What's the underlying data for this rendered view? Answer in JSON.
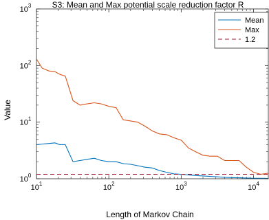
{
  "chart_data": {
    "type": "line",
    "title": "S3: Mean and Max potential scale reduction factor R",
    "xlabel": "Length of Markov Chain",
    "ylabel": "Value",
    "xscale": "log",
    "yscale": "log",
    "xlim": [
      10,
      16000
    ],
    "ylim": [
      1,
      1000
    ],
    "x_ticks": [
      {
        "base": "10",
        "exp": "1"
      },
      {
        "base": "10",
        "exp": "2"
      },
      {
        "base": "10",
        "exp": "3"
      },
      {
        "base": "10",
        "exp": "4"
      }
    ],
    "y_ticks": [
      {
        "base": "10",
        "exp": "0"
      },
      {
        "base": "10",
        "exp": "1"
      },
      {
        "base": "10",
        "exp": "2"
      },
      {
        "base": "10",
        "exp": "3"
      }
    ],
    "legend_position": "top-right",
    "series": [
      {
        "name": "Mean",
        "color": "#0072bd",
        "style": "solid",
        "x": [
          10,
          12,
          15,
          18,
          21,
          25,
          32,
          40,
          50,
          63,
          79,
          100,
          126,
          158,
          200,
          251,
          316,
          398,
          500,
          631,
          794,
          1000,
          1259,
          1585,
          1995,
          2512,
          3162,
          3981,
          5012,
          6310,
          7943,
          10000,
          12589,
          15849
        ],
        "values": [
          4.0,
          4.1,
          4.2,
          4.3,
          4.0,
          4.0,
          2.0,
          2.1,
          2.2,
          2.3,
          2.1,
          2.0,
          2.0,
          1.85,
          1.8,
          1.7,
          1.6,
          1.55,
          1.4,
          1.3,
          1.22,
          1.2,
          1.17,
          1.14,
          1.12,
          1.1,
          1.08,
          1.06,
          1.05,
          1.04,
          1.03,
          1.02,
          1.02,
          1.01
        ]
      },
      {
        "name": "Max",
        "color": "#d95319",
        "style": "solid",
        "x": [
          10,
          12,
          15,
          18,
          21,
          25,
          32,
          40,
          50,
          63,
          79,
          100,
          126,
          158,
          200,
          251,
          316,
          398,
          500,
          631,
          794,
          1000,
          1259,
          1585,
          1995,
          2512,
          3162,
          3981,
          5012,
          6310,
          7943,
          10000,
          12589,
          15849
        ],
        "values": [
          130,
          90,
          80,
          78,
          70,
          65,
          24,
          20,
          21,
          22,
          21,
          19,
          18,
          11,
          10.5,
          10,
          8.5,
          7,
          6.2,
          6.0,
          5.3,
          4.8,
          3.5,
          3.0,
          2.6,
          2.5,
          2.5,
          2.1,
          2.1,
          2.1,
          1.6,
          1.3,
          1.2,
          1.25
        ]
      },
      {
        "name": "1.2",
        "color": "#a2142f",
        "style": "dashed",
        "x": [
          10,
          16000
        ],
        "values": [
          1.2,
          1.2
        ]
      }
    ]
  }
}
